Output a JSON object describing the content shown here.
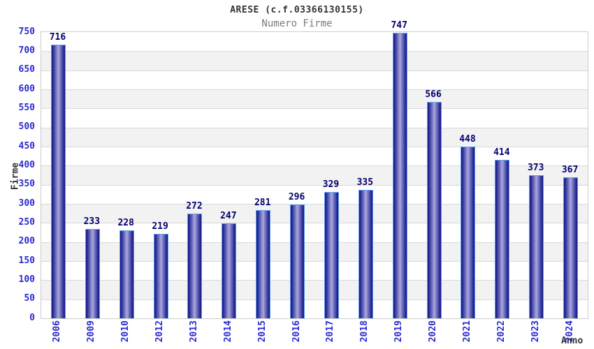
{
  "header": {
    "title": "ARESE (c.f.03366130155)",
    "subtitle": "Numero Firme"
  },
  "chart_data": {
    "type": "bar",
    "title": "ARESE (c.f.03366130155)",
    "subtitle": "Numero Firme",
    "xlabel": "Anno",
    "ylabel": "Firme",
    "categories": [
      "2006",
      "2009",
      "2010",
      "2012",
      "2013",
      "2014",
      "2015",
      "2016",
      "2017",
      "2018",
      "2019",
      "2020",
      "2021",
      "2022",
      "2023",
      "2024"
    ],
    "values": [
      716,
      233,
      228,
      219,
      272,
      247,
      281,
      296,
      329,
      335,
      747,
      566,
      448,
      414,
      373,
      367
    ],
    "ylim": [
      0,
      750
    ],
    "ytick_step": 50,
    "grid": true,
    "legend_position": "none",
    "colors": {
      "bar_edge_dark": "#15157d",
      "bar_mid": "#31319b",
      "bar_center_light": "#a8a8de",
      "bar_border": "#5ba3f5",
      "tick_label": "#2b2bcf",
      "value_label": "#00006e",
      "band_gray": "#f2f2f2",
      "band_white": "#ffffff",
      "gridline": "#d9d9d9",
      "plot_border": "#cccccc",
      "title": "#333333",
      "subtitle": "#7a7a7a",
      "axis_title": "#333333"
    }
  }
}
